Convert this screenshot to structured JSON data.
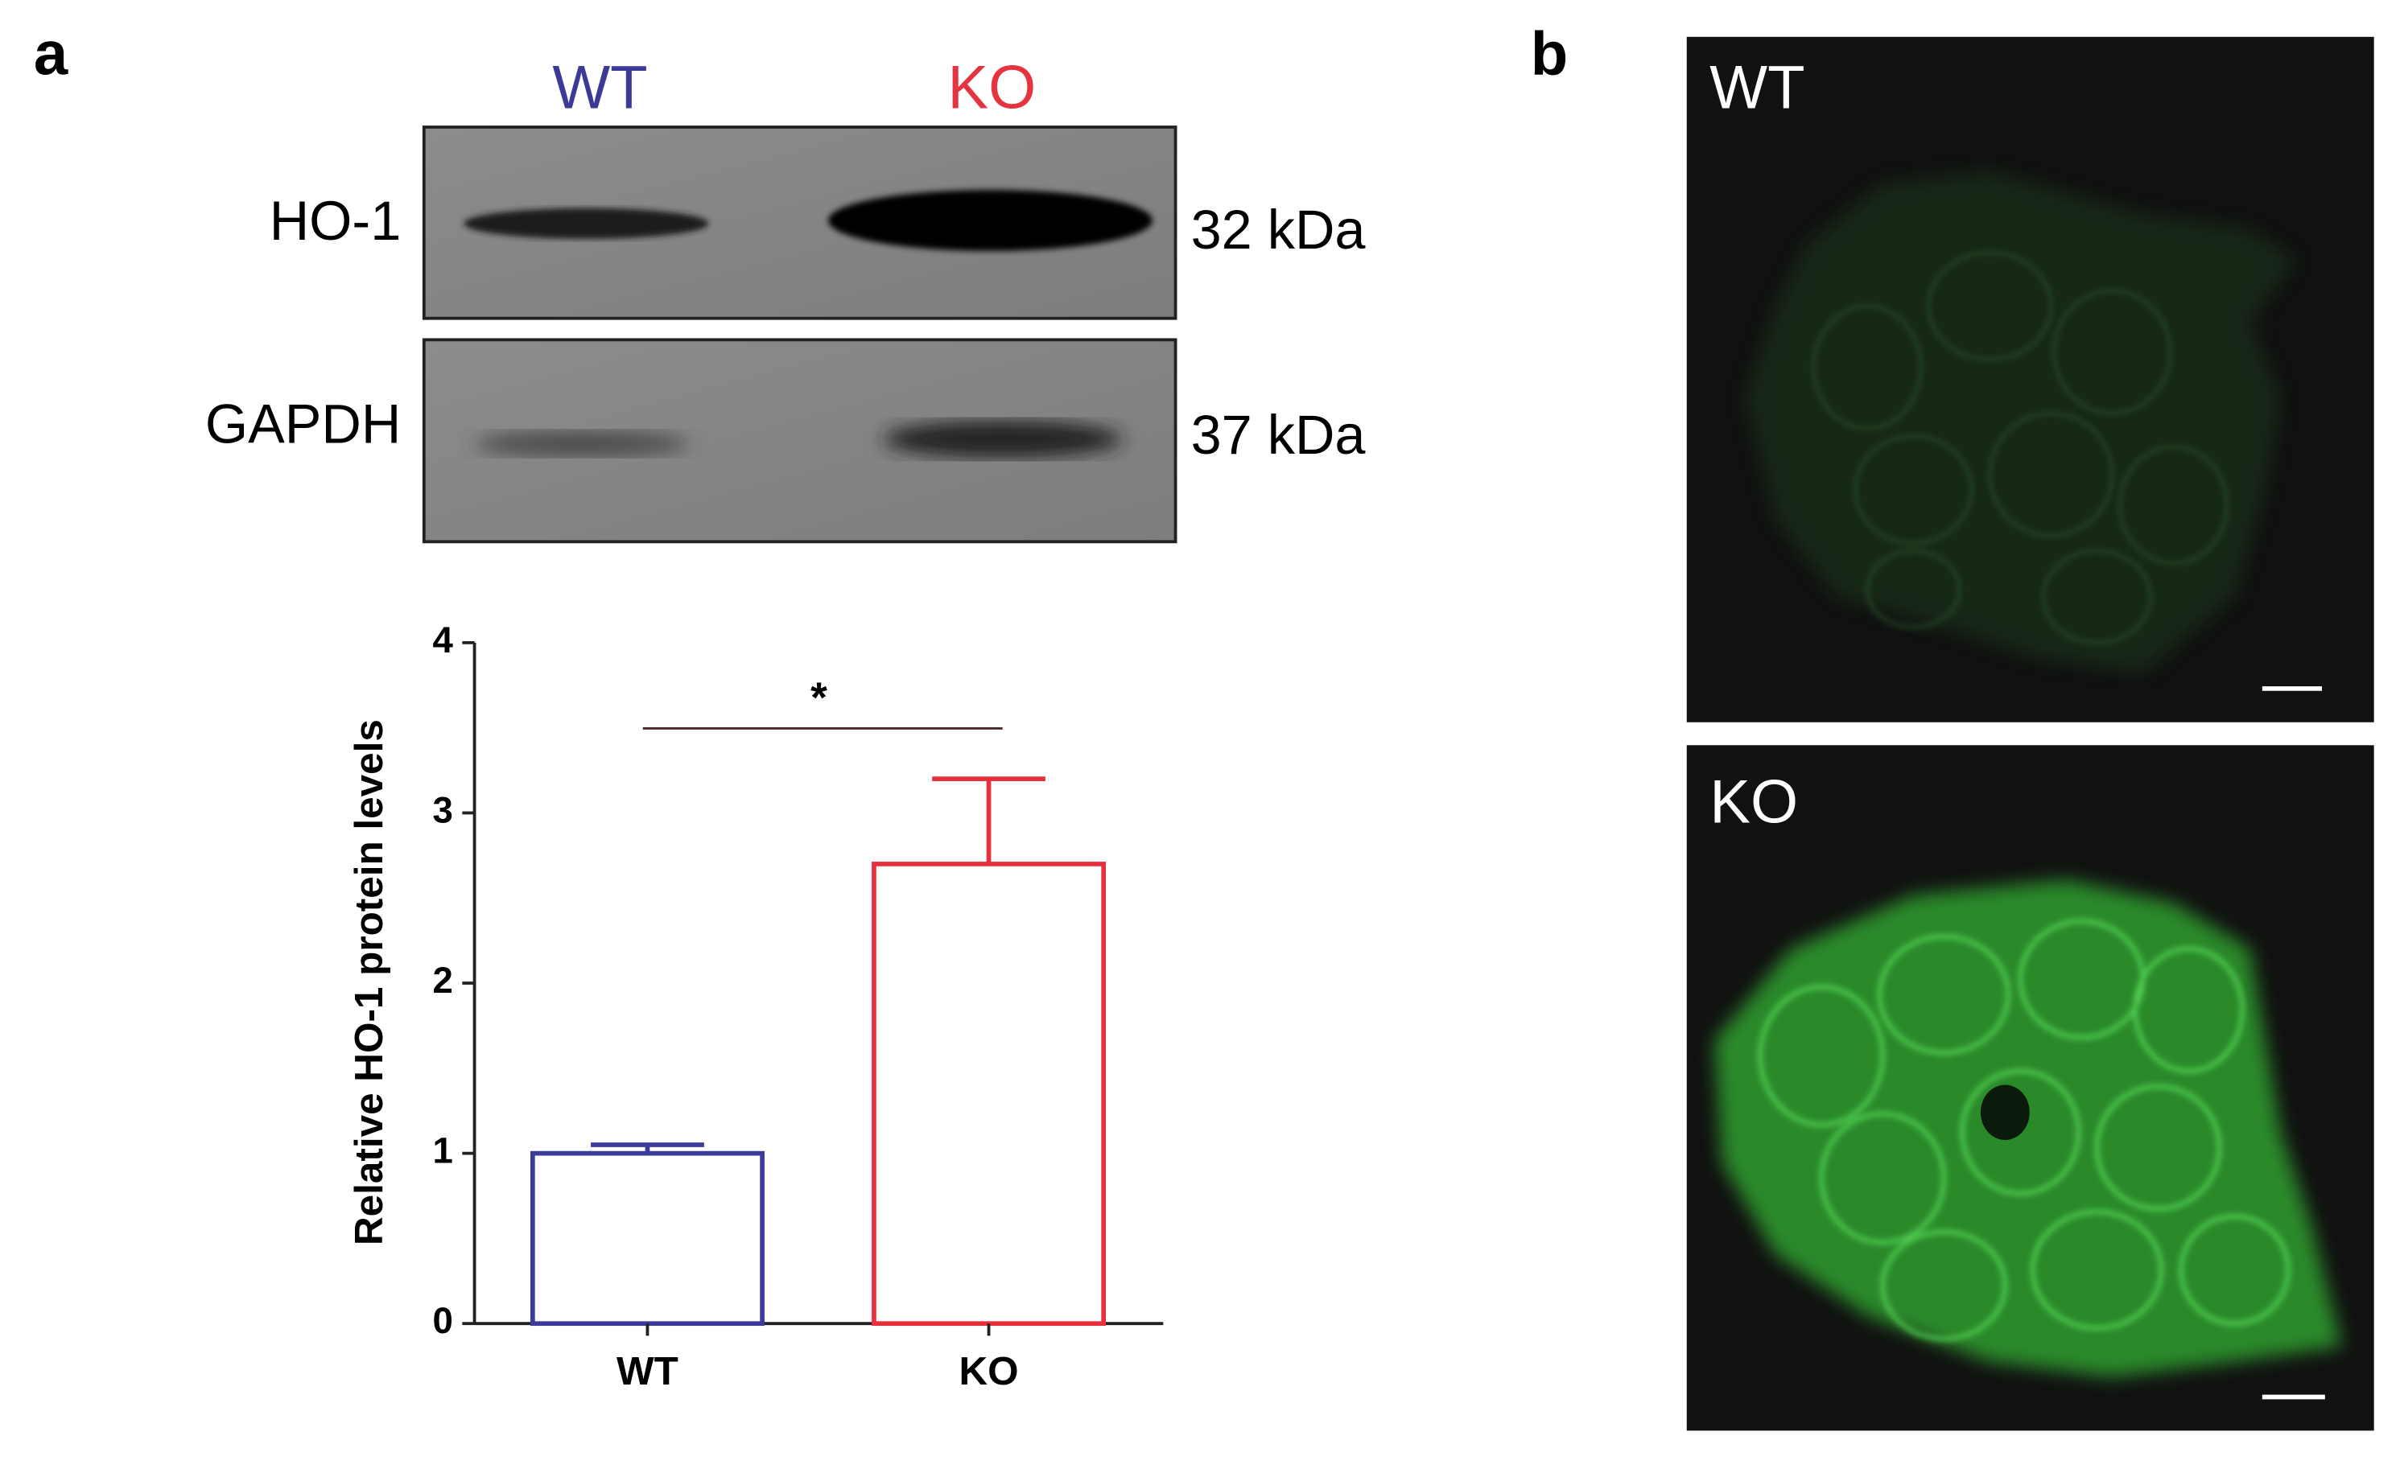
{
  "panel_a": {
    "label": "a",
    "blot": {
      "lanes": [
        "WT",
        "KO"
      ],
      "lane_colors": [
        "#3d3a97",
        "#e5333f"
      ],
      "bands": [
        {
          "name": "HO-1",
          "size": "32 kDa"
        },
        {
          "name": "GAPDH",
          "size": "37 kDa"
        }
      ]
    }
  },
  "chart_data": {
    "type": "bar",
    "y_label": "Relative HO-1 protein levels",
    "categories": [
      "WT",
      "KO"
    ],
    "values": [
      1.0,
      2.7
    ],
    "errors": [
      0.05,
      0.5
    ],
    "colors": [
      "#3c3a9a",
      "#e8303c"
    ],
    "significance": "*",
    "ylim": [
      0,
      4
    ],
    "yticks": [
      0,
      1,
      2,
      3,
      4
    ]
  },
  "panel_b": {
    "label": "b",
    "images": [
      {
        "label": "WT"
      },
      {
        "label": "KO"
      }
    ]
  }
}
